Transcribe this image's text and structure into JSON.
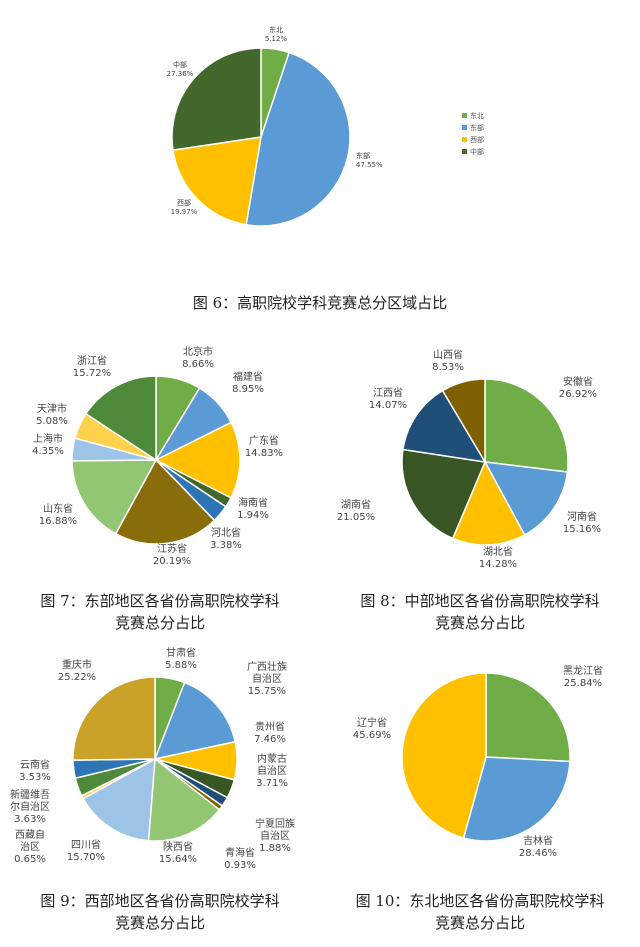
{
  "colors": {
    "green": "#70AD47",
    "blue": "#5B9BD5",
    "yellow": "#FFC000",
    "darkgreen": "#43682B",
    "gold": "#C9A227",
    "brown": "#8A6D0B",
    "lightgreen": "#93C672",
    "lightblue": "#9DC3E6",
    "navy": "#1F4E79",
    "darkolive": "#375623",
    "teal": "#2E75B6",
    "olive": "#7F6000"
  },
  "captions": {
    "fig6": "图 6：高职院校学科竞赛总分区域占比",
    "fig7_line1": "图 7：东部地区各省份高职院校学科",
    "fig7_line2": "竞赛总分占比",
    "fig8_line1": "图 8：中部地区各省份高职院校学科",
    "fig8_line2": "竞赛总分占比",
    "fig9_line1": "图 9：西部地区各省份高职院校学科",
    "fig9_line2": "竞赛总分占比",
    "fig10_line1": "图 10：东北地区各省份高职院校学科",
    "fig10_line2": "竞赛总分占比"
  },
  "chart_data": [
    {
      "type": "pie",
      "id": "fig6",
      "title": "",
      "legend": "right",
      "slices": [
        {
          "label": "东北",
          "pct_text": "5.12%",
          "value": 5.12,
          "color": "#70AD47"
        },
        {
          "label": "东部",
          "pct_text": "47.55%",
          "value": 47.55,
          "color": "#5B9BD5"
        },
        {
          "label": "西部",
          "pct_text": "19.97%",
          "value": 19.97,
          "color": "#FFC000"
        },
        {
          "label": "中部",
          "pct_text": "27.36%",
          "value": 27.36,
          "color": "#43682B"
        }
      ]
    },
    {
      "type": "pie",
      "id": "fig7",
      "title": "",
      "slices": [
        {
          "label": "北京市",
          "pct_text": "8.66%",
          "value": 8.66,
          "color": "#70AD47"
        },
        {
          "label": "福建省",
          "pct_text": "8.95%",
          "value": 8.95,
          "color": "#5B9BD5"
        },
        {
          "label": "广东省",
          "pct_text": "14.83%",
          "value": 14.83,
          "color": "#FFC000"
        },
        {
          "label": "海南省",
          "pct_text": "1.94%",
          "value": 1.94,
          "color": "#43682B"
        },
        {
          "label": "河北省",
          "pct_text": "3.38%",
          "value": 3.38,
          "color": "#2E75B6"
        },
        {
          "label": "江苏省",
          "pct_text": "20.19%",
          "value": 20.19,
          "color": "#8A6D0B"
        },
        {
          "label": "山东省",
          "pct_text": "16.88%",
          "value": 16.88,
          "color": "#93C672"
        },
        {
          "label": "上海市",
          "pct_text": "4.35%",
          "value": 4.35,
          "color": "#9DC3E6"
        },
        {
          "label": "天津市",
          "pct_text": "5.08%",
          "value": 5.08,
          "color": "#FFD24D"
        },
        {
          "label": "浙江省",
          "pct_text": "15.72%",
          "value": 15.72,
          "color": "#4E8A3A"
        }
      ]
    },
    {
      "type": "pie",
      "id": "fig8",
      "title": "",
      "slices": [
        {
          "label": "安徽省",
          "pct_text": "26.92%",
          "value": 26.92,
          "color": "#70AD47"
        },
        {
          "label": "河南省",
          "pct_text": "15.16%",
          "value": 15.16,
          "color": "#5B9BD5"
        },
        {
          "label": "湖北省",
          "pct_text": "14.28%",
          "value": 14.28,
          "color": "#FFC000"
        },
        {
          "label": "湖南省",
          "pct_text": "21.05%",
          "value": 21.05,
          "color": "#375623"
        },
        {
          "label": "江西省",
          "pct_text": "14.07%",
          "value": 14.07,
          "color": "#1F4E79"
        },
        {
          "label": "山西省",
          "pct_text": "8.53%",
          "value": 8.53,
          "color": "#7F6000"
        }
      ]
    },
    {
      "type": "pie",
      "id": "fig9",
      "title": "",
      "slices": [
        {
          "label": "甘肃省",
          "pct_text": "5.88%",
          "value": 5.88,
          "color": "#70AD47"
        },
        {
          "label": "广西壮族自治区",
          "pct_text": "15.75%",
          "value": 15.75,
          "color": "#5B9BD5"
        },
        {
          "label": "贵州省",
          "pct_text": "7.46%",
          "value": 7.46,
          "color": "#FFC000"
        },
        {
          "label": "内蒙古自治区",
          "pct_text": "3.71%",
          "value": 3.71,
          "color": "#375623"
        },
        {
          "label": "宁夏回族自治区",
          "pct_text": "1.88%",
          "value": 1.88,
          "color": "#1F4E79"
        },
        {
          "label": "青海省",
          "pct_text": "0.93%",
          "value": 0.93,
          "color": "#7F6000"
        },
        {
          "label": "陕西省",
          "pct_text": "15.64%",
          "value": 15.64,
          "color": "#93C672"
        },
        {
          "label": "四川省",
          "pct_text": "15.70%",
          "value": 15.7,
          "color": "#9DC3E6"
        },
        {
          "label": "西藏自治区",
          "pct_text": "0.65%",
          "value": 0.65,
          "color": "#FFD24D"
        },
        {
          "label": "新疆维吾尔自治区",
          "pct_text": "3.63%",
          "value": 3.63,
          "color": "#4E8A3A"
        },
        {
          "label": "云南省",
          "pct_text": "3.53%",
          "value": 3.53,
          "color": "#2E75B6"
        },
        {
          "label": "重庆市",
          "pct_text": "25.22%",
          "value": 25.22,
          "color": "#C9A227"
        }
      ]
    },
    {
      "type": "pie",
      "id": "fig10",
      "title": "",
      "slices": [
        {
          "label": "黑龙江省",
          "pct_text": "25.84%",
          "value": 25.84,
          "color": "#70AD47"
        },
        {
          "label": "吉林省",
          "pct_text": "28.46%",
          "value": 28.46,
          "color": "#5B9BD5"
        },
        {
          "label": "辽宁省",
          "pct_text": "45.69%",
          "value": 45.69,
          "color": "#FFC000"
        }
      ]
    }
  ]
}
